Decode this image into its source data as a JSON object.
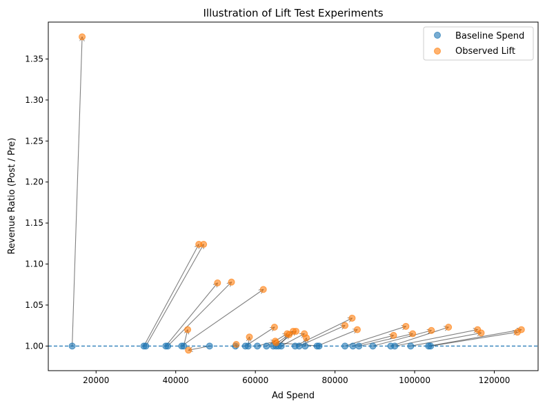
{
  "colors": {
    "baseline": "#1f77b4",
    "lift": "#ff7f0e",
    "arrow": "#000000",
    "reference_line": "#1f77b4"
  },
  "chart_data": {
    "type": "scatter",
    "title": "Illustration of Lift Test Experiments",
    "xlabel": "Ad Spend",
    "ylabel": "Revenue Ratio (Post / Pre)",
    "xlim": [
      8000,
      131000
    ],
    "ylim": [
      0.97,
      1.395
    ],
    "x_ticks": [
      20000,
      40000,
      60000,
      80000,
      100000,
      120000
    ],
    "x_tick_labels": [
      "20000",
      "40000",
      "60000",
      "80000",
      "100000",
      "120000"
    ],
    "y_ticks": [
      1.0,
      1.05,
      1.1,
      1.15,
      1.2,
      1.25,
      1.3,
      1.35
    ],
    "y_tick_labels": [
      "1.00",
      "1.05",
      "1.10",
      "1.15",
      "1.20",
      "1.25",
      "1.30",
      "1.35"
    ],
    "grid": false,
    "legend_position": "top-right",
    "reference_line": {
      "y": 1.0,
      "style": "dashed"
    },
    "series": [
      {
        "name": "Baseline Spend",
        "color": "#1f77b4"
      },
      {
        "name": "Observed Lift",
        "color": "#ff7f0e"
      }
    ],
    "experiments": [
      {
        "x0": 14000,
        "y0": 1.0,
        "x1": 16500,
        "y1": 1.377
      },
      {
        "x0": 32000,
        "y0": 1.0,
        "x1": 45800,
        "y1": 1.124
      },
      {
        "x0": 32500,
        "y0": 1.0,
        "x1": 47000,
        "y1": 1.124
      },
      {
        "x0": 37500,
        "y0": 1.0,
        "x1": 50500,
        "y1": 1.077
      },
      {
        "x0": 38000,
        "y0": 1.0,
        "x1": 54000,
        "y1": 1.078
      },
      {
        "x0": 41500,
        "y0": 1.0,
        "x1": 62000,
        "y1": 1.069
      },
      {
        "x0": 42000,
        "y0": 1.0,
        "x1": 43000,
        "y1": 1.02
      },
      {
        "x0": 48500,
        "y0": 1.0,
        "x1": 43200,
        "y1": 0.995
      },
      {
        "x0": 55000,
        "y0": 1.0,
        "x1": 55200,
        "y1": 1.002
      },
      {
        "x0": 57500,
        "y0": 1.0,
        "x1": 64800,
        "y1": 1.023
      },
      {
        "x0": 58200,
        "y0": 1.0,
        "x1": 58500,
        "y1": 1.011
      },
      {
        "x0": 60500,
        "y0": 1.0,
        "x1": 65000,
        "y1": 1.006
      },
      {
        "x0": 62800,
        "y0": 1.0,
        "x1": 68000,
        "y1": 1.015
      },
      {
        "x0": 64500,
        "y0": 1.0,
        "x1": 69500,
        "y1": 1.018
      },
      {
        "x0": 65200,
        "y0": 1.0,
        "x1": 70200,
        "y1": 1.018
      },
      {
        "x0": 65800,
        "y0": 1.0,
        "x1": 68500,
        "y1": 1.014
      },
      {
        "x0": 66500,
        "y0": 1.0,
        "x1": 72300,
        "y1": 1.015
      },
      {
        "x0": 70000,
        "y0": 1.0,
        "x1": 84300,
        "y1": 1.034
      },
      {
        "x0": 71000,
        "y0": 1.0,
        "x1": 82500,
        "y1": 1.025
      },
      {
        "x0": 72500,
        "y0": 1.0,
        "x1": 72800,
        "y1": 1.01
      },
      {
        "x0": 75500,
        "y0": 1.0,
        "x1": 85600,
        "y1": 1.02
      },
      {
        "x0": 76000,
        "y0": 1.0,
        "x1": 65200,
        "y1": 1.004
      },
      {
        "x0": 82500,
        "y0": 1.0,
        "x1": 97800,
        "y1": 1.024
      },
      {
        "x0": 84500,
        "y0": 1.0,
        "x1": 94700,
        "y1": 1.013
      },
      {
        "x0": 86000,
        "y0": 1.0,
        "x1": 99500,
        "y1": 1.015
      },
      {
        "x0": 89500,
        "y0": 1.0,
        "x1": 104200,
        "y1": 1.019
      },
      {
        "x0": 94000,
        "y0": 1.0,
        "x1": 108500,
        "y1": 1.023
      },
      {
        "x0": 95000,
        "y0": 1.0,
        "x1": 115800,
        "y1": 1.02
      },
      {
        "x0": 99000,
        "y0": 1.0,
        "x1": 116700,
        "y1": 1.016
      },
      {
        "x0": 103500,
        "y0": 1.0,
        "x1": 126800,
        "y1": 1.02
      },
      {
        "x0": 104000,
        "y0": 1.0,
        "x1": 125800,
        "y1": 1.017
      }
    ]
  }
}
